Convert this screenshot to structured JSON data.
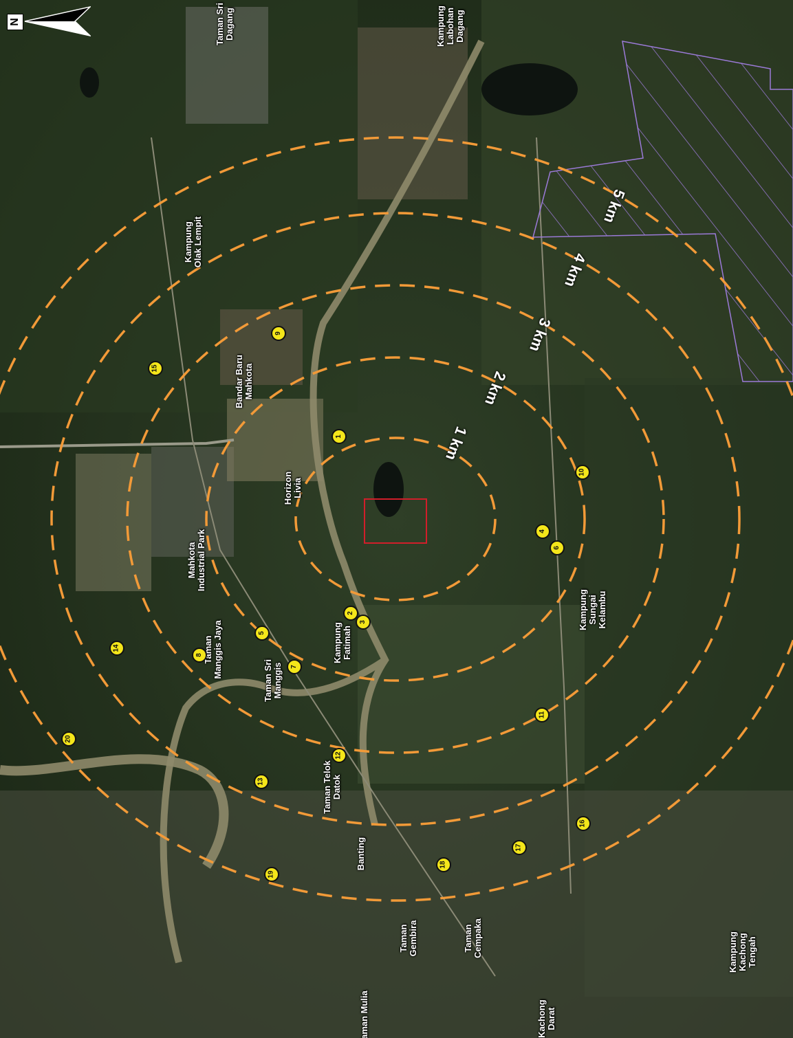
{
  "map": {
    "colors": {
      "ring": "#f29a38",
      "site_boundary": "#d21e2a",
      "hatch": "#9b7ad8",
      "marker_fill": "#f4e61a",
      "river": "#8e8a6a"
    },
    "north_arrow": {
      "letter": "N",
      "icon": "north-arrow-icon"
    },
    "rings": [
      {
        "label": "1 km"
      },
      {
        "label": "2 km"
      },
      {
        "label": "3 km"
      },
      {
        "label": "4 km"
      },
      {
        "label": "5 km"
      }
    ],
    "places": [
      {
        "lines": [
          "Taman Sri",
          "Dagang"
        ]
      },
      {
        "lines": [
          "Kampung",
          "Labohan",
          "Dagang"
        ]
      },
      {
        "lines": [
          "Kampung",
          "Olak Lempit"
        ]
      },
      {
        "lines": [
          "Bandar Baru",
          "Mahkota"
        ]
      },
      {
        "lines": [
          "Horizon",
          "Livia"
        ]
      },
      {
        "lines": [
          "Mahkota",
          "Industrial Park"
        ]
      },
      {
        "lines": [
          "Taman",
          "Manggis Jaya"
        ]
      },
      {
        "lines": [
          "Taman Sri",
          "Manggis"
        ]
      },
      {
        "lines": [
          "Kampung",
          "Fatimah"
        ]
      },
      {
        "lines": [
          "Kampung",
          "Sungai",
          "Kelambu"
        ]
      },
      {
        "lines": [
          "Taman Telok",
          "Datok"
        ]
      },
      {
        "lines": [
          "Banting"
        ]
      },
      {
        "lines": [
          "Taman",
          "Gembira"
        ]
      },
      {
        "lines": [
          "Taman",
          "Cempaka"
        ]
      },
      {
        "lines": [
          "Kampung",
          "Kachong",
          "Tengah"
        ]
      },
      {
        "lines": [
          "Taman Mulia"
        ]
      },
      {
        "lines": [
          "Kachong",
          "Darat"
        ]
      }
    ],
    "markers": [
      "1",
      "2",
      "3",
      "4",
      "5",
      "6",
      "7",
      "8",
      "9",
      "10",
      "11",
      "12",
      "13",
      "14",
      "15",
      "16",
      "17",
      "18",
      "19",
      "20"
    ]
  }
}
